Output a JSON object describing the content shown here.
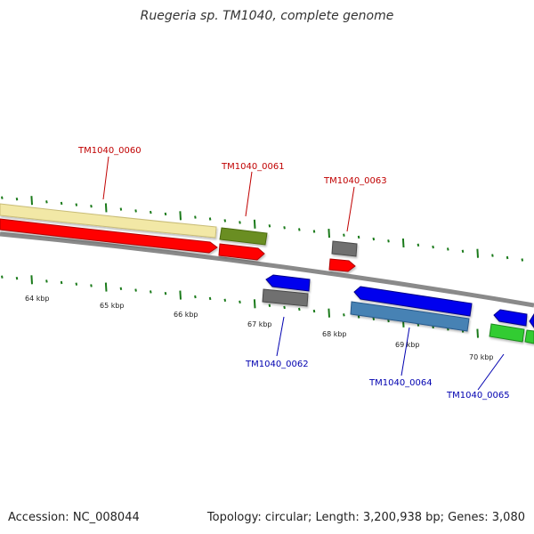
{
  "title": "Ruegeria sp. TM1040, complete genome",
  "footer": {
    "accession": "Accession: NC_008044",
    "summary": "Topology: circular; Length: 3,200,938 bp; Genes: 3,080"
  },
  "scale_labels": [
    "64 kbp",
    "65 kbp",
    "66 kbp",
    "67 kbp",
    "68 kbp",
    "69 kbp",
    "70 kbp"
  ],
  "gene_labels": {
    "g0060": "TM1040_0060",
    "g0061": "TM1040_0061",
    "g0062": "TM1040_0062",
    "g0063": "TM1040_0063",
    "g0064": "TM1040_0064",
    "g0065": "TM1040_0065"
  },
  "colors": {
    "plus_label": "#c00000",
    "minus_label": "#0000b0",
    "backbone": "#808080",
    "tick": "#1a7a1a",
    "cog_yellow": "#f0e6a0",
    "red": "#ff0000",
    "olive": "#6b8e23",
    "gray": "#707070",
    "blue": "#0000ee",
    "steelblue": "#4682b4",
    "green": "#33cc33"
  }
}
